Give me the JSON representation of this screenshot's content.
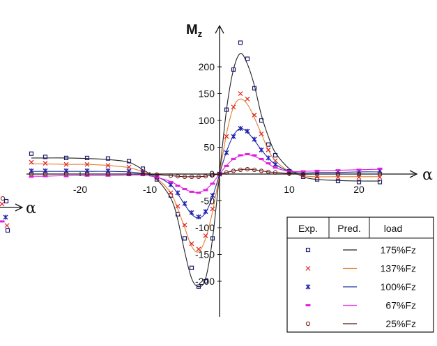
{
  "chart_data": {
    "type": "scatter",
    "title": "",
    "xlabel": "α",
    "ylabel": "Mz",
    "xlim": [
      -27,
      24
    ],
    "ylim": [
      -270,
      265
    ],
    "x_ticks": [
      -20,
      -10,
      0,
      10,
      20
    ],
    "x_tick_labels": [
      "-20",
      "-10",
      "0",
      "10",
      "20"
    ],
    "y_ticks": [
      -200,
      -150,
      -100,
      -50,
      0,
      50,
      100,
      150,
      200
    ],
    "y_tick_labels": [
      "-200",
      "-150",
      "-100",
      "-50",
      "0",
      "50",
      "100",
      "150",
      "200"
    ],
    "legend": {
      "position": "bottom-right",
      "headers": [
        "Exp.",
        "Pred.",
        "load"
      ]
    },
    "series": [
      {
        "name": "175%Fz",
        "marker": "square",
        "color": "#1a1a6e",
        "line_color": "#222222",
        "x": [
          -27,
          -25,
          -22,
          -19,
          -16,
          -13,
          -11,
          -9,
          -7,
          -6,
          -5,
          -4,
          -3,
          -2,
          -1,
          0,
          1,
          2,
          3,
          4,
          5,
          6,
          7,
          8,
          10,
          12,
          14,
          17,
          20,
          23
        ],
        "exp": [
          38,
          32,
          30,
          30,
          29,
          24,
          10,
          -10,
          -40,
          -75,
          -120,
          -175,
          -210,
          -200,
          -120,
          0,
          120,
          195,
          245,
          215,
          160,
          100,
          55,
          35,
          5,
          -5,
          -10,
          -13,
          -15,
          -15
        ],
        "pred": [
          30,
          30,
          30,
          29,
          27,
          22,
          8,
          -10,
          -45,
          -85,
          -145,
          -195,
          -210,
          -195,
          -120,
          0,
          120,
          195,
          225,
          205,
          165,
          110,
          70,
          40,
          10,
          -5,
          -10,
          -12,
          -13,
          -13
        ]
      },
      {
        "name": "137%Fz",
        "marker": "x",
        "color": "#e02020",
        "line_color": "#e08030",
        "x": [
          -27,
          -25,
          -22,
          -19,
          -16,
          -13,
          -11,
          -9,
          -7,
          -6,
          -5,
          -4,
          -3,
          -2,
          -1,
          0,
          1,
          2,
          3,
          4,
          5,
          6,
          7,
          8,
          10,
          12,
          14,
          17,
          20,
          23
        ],
        "exp": [
          22,
          20,
          18,
          18,
          16,
          13,
          5,
          -8,
          -35,
          -60,
          -95,
          -130,
          -140,
          -115,
          -65,
          0,
          70,
          125,
          150,
          140,
          110,
          75,
          45,
          25,
          5,
          -3,
          -5,
          -6,
          -6,
          -6
        ],
        "pred": [
          19,
          19,
          18,
          18,
          16,
          12,
          4,
          -8,
          -35,
          -65,
          -100,
          -135,
          -145,
          -120,
          -70,
          0,
          75,
          125,
          140,
          130,
          105,
          75,
          45,
          25,
          5,
          -3,
          -5,
          -5,
          -5,
          -5
        ]
      },
      {
        "name": "100%Fz",
        "marker": "star",
        "color": "#2020b0",
        "line_color": "#2030a0",
        "x": [
          -27,
          -25,
          -22,
          -19,
          -16,
          -13,
          -11,
          -9,
          -7,
          -6,
          -5,
          -4,
          -3,
          -2,
          -1,
          0,
          1,
          2,
          3,
          4,
          5,
          6,
          7,
          8,
          10,
          12,
          14,
          17,
          20,
          23
        ],
        "exp": [
          6,
          6,
          6,
          6,
          6,
          5,
          2,
          -5,
          -20,
          -35,
          -55,
          -72,
          -80,
          -70,
          -40,
          0,
          40,
          70,
          85,
          80,
          65,
          45,
          30,
          18,
          5,
          2,
          3,
          4,
          5,
          6
        ],
        "pred": [
          5,
          5,
          5,
          5,
          5,
          4,
          1,
          -5,
          -20,
          -37,
          -57,
          -75,
          -82,
          -72,
          -42,
          0,
          42,
          72,
          85,
          78,
          63,
          45,
          30,
          18,
          5,
          2,
          3,
          3,
          4,
          4
        ]
      },
      {
        "name": "67%Fz",
        "marker": "dash",
        "color": "#e020e0",
        "line_color": "#e020e0",
        "x": [
          -27,
          -25,
          -22,
          -19,
          -16,
          -13,
          -11,
          -9,
          -7,
          -6,
          -5,
          -4,
          -3,
          -2,
          -1,
          0,
          1,
          2,
          3,
          4,
          5,
          6,
          7,
          8,
          10,
          12,
          14,
          17,
          20,
          23
        ],
        "exp": [
          -5,
          -4,
          -4,
          -3,
          -3,
          -2,
          -2,
          -5,
          -15,
          -22,
          -28,
          -33,
          -35,
          -30,
          -18,
          0,
          15,
          28,
          35,
          37,
          35,
          28,
          20,
          12,
          5,
          5,
          6,
          7,
          8,
          10
        ],
        "pred": [
          -4,
          -4,
          -3,
          -3,
          -3,
          -2,
          -2,
          -6,
          -14,
          -21,
          -28,
          -33,
          -34,
          -29,
          -17,
          0,
          16,
          28,
          34,
          36,
          33,
          27,
          19,
          12,
          5,
          5,
          6,
          7,
          8,
          9
        ]
      },
      {
        "name": "25%Fz",
        "marker": "circle",
        "color": "#7a2020",
        "line_color": "#5a1010",
        "x": [
          -27,
          -25,
          -22,
          -19,
          -16,
          -13,
          -11,
          -9,
          -7,
          -6,
          -5,
          -4,
          -3,
          -2,
          -1,
          0,
          1,
          2,
          3,
          4,
          5,
          6,
          7,
          8,
          10,
          12,
          14,
          17,
          20,
          23
        ],
        "exp": [
          0,
          0,
          0,
          0,
          0,
          0,
          0,
          -1,
          -3,
          -4,
          -5,
          -5,
          -5,
          -4,
          -2,
          0,
          3,
          6,
          8,
          9,
          8,
          6,
          4,
          3,
          1,
          0,
          0,
          0,
          0,
          0
        ],
        "pred": [
          0,
          0,
          0,
          0,
          0,
          0,
          0,
          -1,
          -3,
          -4,
          -5,
          -5,
          -5,
          -4,
          -2,
          0,
          3,
          6,
          8,
          9,
          8,
          6,
          4,
          3,
          1,
          0,
          0,
          0,
          0,
          0
        ]
      }
    ]
  }
}
